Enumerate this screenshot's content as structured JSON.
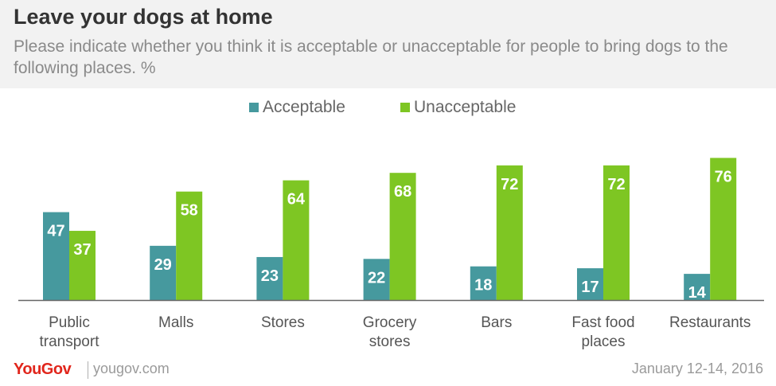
{
  "header": {
    "title": "Leave your dogs at home",
    "subtitle": "Please indicate whether you think it is acceptable or unacceptable for people to bring dogs to the following places. %"
  },
  "colors": {
    "acceptable": "#46999e",
    "unacceptable": "#7ec623"
  },
  "chart_data": {
    "type": "bar",
    "categories": [
      [
        "Public",
        "transport"
      ],
      [
        "Malls"
      ],
      [
        "Stores"
      ],
      [
        "Grocery",
        "stores"
      ],
      [
        "Bars"
      ],
      [
        "Fast food",
        "places"
      ],
      [
        "Restaurants"
      ]
    ],
    "series": [
      {
        "name": "Acceptable",
        "values": [
          47,
          29,
          23,
          22,
          18,
          17,
          14
        ]
      },
      {
        "name": "Unacceptable",
        "values": [
          37,
          58,
          64,
          68,
          72,
          72,
          76
        ]
      }
    ],
    "ylim": [
      0,
      80
    ],
    "grid": false,
    "legend_position": "top-center"
  },
  "footer": {
    "brand": "YouGov",
    "site": "yougov.com",
    "date": "January 12-14, 2016"
  }
}
